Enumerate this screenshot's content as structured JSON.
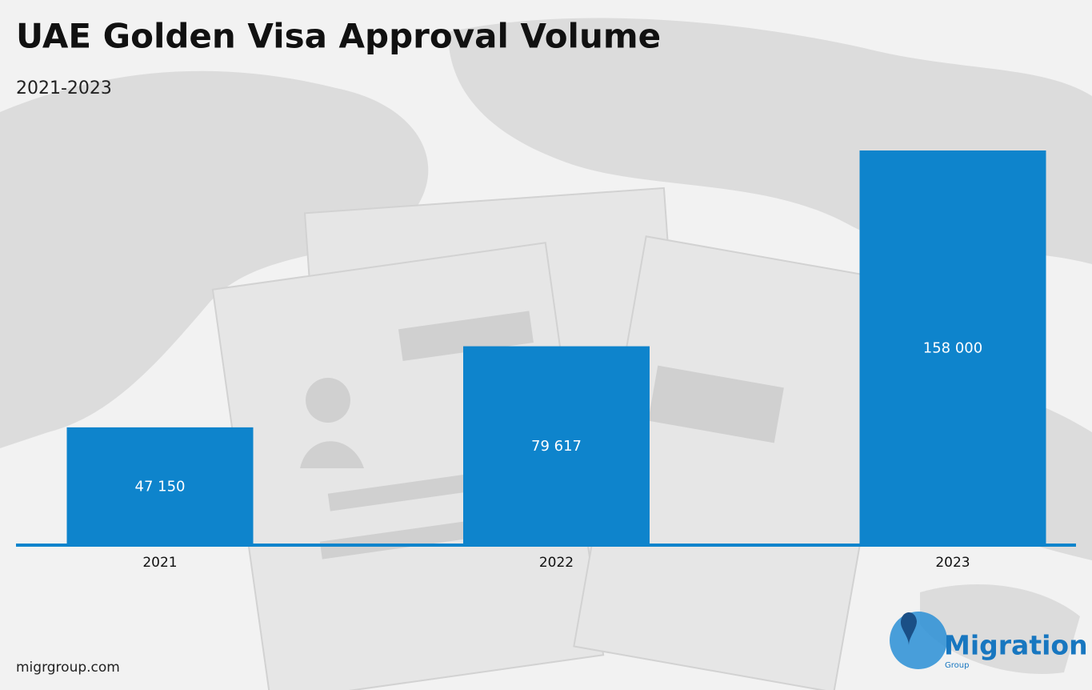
{
  "chart_data": {
    "type": "bar",
    "title": "UAE Golden Visa Approval Volume",
    "subtitle": "2021-2023",
    "categories": [
      "2021",
      "2022",
      "2023"
    ],
    "values": [
      47150,
      79617,
      158000
    ],
    "value_labels": [
      "47 150",
      "79 617",
      "158 000"
    ],
    "color": "#0e84cc",
    "source": "migrgroup.com"
  },
  "logo": {
    "name": "Migration",
    "tagline": "Group"
  }
}
